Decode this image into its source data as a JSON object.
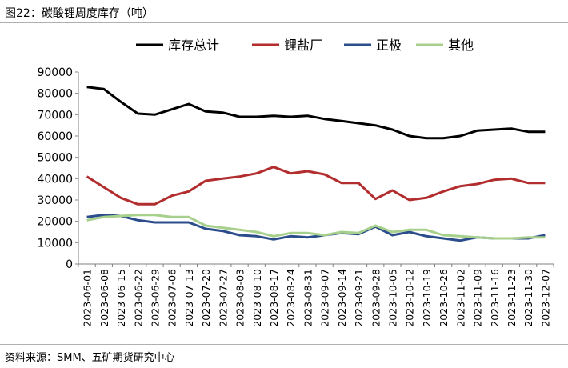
{
  "figure_title": "图22：碳酸锂周度库存（吨）",
  "source_note": "资料来源：SMM、五矿期货研究中心",
  "chart_data": {
    "type": "line",
    "title": "",
    "xlabel": "",
    "ylabel": "",
    "ylim": [
      0,
      90000
    ],
    "yticks": [
      0,
      10000,
      20000,
      30000,
      40000,
      50000,
      60000,
      70000,
      80000,
      90000
    ],
    "grid": false,
    "legend_position": "top",
    "x": [
      "2023-06-01",
      "2023-06-08",
      "2023-06-15",
      "2023-06-22",
      "2023-06-29",
      "2023-07-06",
      "2023-07-13",
      "2023-07-20",
      "2023-07-27",
      "2023-08-03",
      "2023-08-10",
      "2023-08-17",
      "2023-08-24",
      "2023-08-31",
      "2023-09-07",
      "2023-09-14",
      "2023-09-21",
      "2023-09-28",
      "2023-10-05",
      "2023-10-12",
      "2023-10-19",
      "2023-10-26",
      "2023-11-02",
      "2023-11-09",
      "2023-11-16",
      "2023-11-23",
      "2023-11-30",
      "2023-12-07"
    ],
    "series": [
      {
        "name": "库存总计",
        "color": "#000000",
        "values": [
          83000,
          82000,
          76000,
          70500,
          70000,
          72500,
          75000,
          71500,
          71000,
          69000,
          69000,
          69500,
          69000,
          69500,
          68000,
          67000,
          66000,
          65000,
          63000,
          60000,
          59000,
          59000,
          60000,
          62500,
          63000,
          63500,
          62000,
          62000
        ]
      },
      {
        "name": "锂盐厂",
        "color": "#b22d2e",
        "values": [
          41000,
          36000,
          31000,
          28000,
          28000,
          32000,
          34000,
          39000,
          40000,
          41000,
          42500,
          45500,
          42500,
          43500,
          42000,
          38000,
          38000,
          30500,
          34500,
          30000,
          31000,
          34000,
          36500,
          37500,
          39500,
          40000,
          38000,
          38000
        ]
      },
      {
        "name": "正极",
        "color": "#2b4d8c",
        "values": [
          22000,
          23000,
          22500,
          20500,
          19500,
          19500,
          19500,
          16500,
          15500,
          13500,
          13000,
          11500,
          13000,
          12500,
          13500,
          14500,
          14000,
          17500,
          13500,
          15000,
          13000,
          12000,
          11000,
          12500,
          12000,
          12000,
          12000,
          13500
        ]
      },
      {
        "name": "其他",
        "color": "#a8d08d",
        "values": [
          20500,
          22000,
          22500,
          23000,
          23000,
          22000,
          22000,
          18000,
          17000,
          16000,
          15000,
          13000,
          14500,
          14500,
          13500,
          15000,
          14500,
          18000,
          15000,
          16000,
          16000,
          13500,
          13000,
          12500,
          12000,
          12000,
          12500,
          12500
        ]
      }
    ]
  }
}
